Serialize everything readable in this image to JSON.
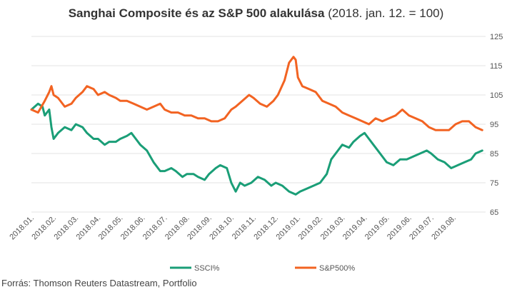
{
  "title_bold": "Sanghai Composite és az S&P 500 alakulása",
  "title_rest": " (2018. jan. 12. = 100)",
  "source": "Forrás: Thomson Reuters Datastream, Portfolio",
  "chart_data": {
    "type": "line",
    "title": "Sanghai Composite és az S&P 500 alakulása (2018. jan. 12. = 100)",
    "y_axis_position": "right",
    "ylim": [
      65,
      125
    ],
    "yticks": [
      65,
      75,
      85,
      95,
      105,
      115,
      125
    ],
    "grid": "horizontal",
    "legend": "bottom-center",
    "x_tick_labels": [
      "2018.01.",
      "2018.02.",
      "2018.03.",
      "2018.04.",
      "2018.05.",
      "2018.06.",
      "2018.07.",
      "2018.08.",
      "2018.09.",
      "2018.10.",
      "2018.11.",
      "2018.12.",
      "2019.01.",
      "2019.02.",
      "2019.03.",
      "2019.04.",
      "2019.05.",
      "2019.06.",
      "2019.07.",
      "2019.08."
    ],
    "x_range_months": [
      0,
      20.3
    ],
    "series": [
      {
        "name": "SSCI%",
        "color": "#1a9e77",
        "points": [
          [
            0,
            100
          ],
          [
            0.3,
            102
          ],
          [
            0.5,
            101
          ],
          [
            0.6,
            98
          ],
          [
            0.8,
            100
          ],
          [
            0.9,
            94
          ],
          [
            1.0,
            90
          ],
          [
            1.2,
            92
          ],
          [
            1.5,
            94
          ],
          [
            1.8,
            93
          ],
          [
            2.0,
            95
          ],
          [
            2.3,
            94
          ],
          [
            2.5,
            92
          ],
          [
            2.8,
            90
          ],
          [
            3.0,
            90
          ],
          [
            3.3,
            88
          ],
          [
            3.5,
            89
          ],
          [
            3.8,
            89
          ],
          [
            4.0,
            90
          ],
          [
            4.3,
            91
          ],
          [
            4.5,
            92
          ],
          [
            4.7,
            90
          ],
          [
            4.9,
            88
          ],
          [
            5.2,
            86
          ],
          [
            5.5,
            82
          ],
          [
            5.8,
            79
          ],
          [
            6.0,
            79
          ],
          [
            6.3,
            80
          ],
          [
            6.5,
            79
          ],
          [
            6.8,
            77
          ],
          [
            7.0,
            78
          ],
          [
            7.3,
            78
          ],
          [
            7.5,
            77
          ],
          [
            7.8,
            76
          ],
          [
            8.0,
            78
          ],
          [
            8.3,
            80
          ],
          [
            8.5,
            81
          ],
          [
            8.8,
            80
          ],
          [
            9.0,
            75
          ],
          [
            9.2,
            72
          ],
          [
            9.4,
            75
          ],
          [
            9.6,
            74
          ],
          [
            9.9,
            75
          ],
          [
            10.2,
            77
          ],
          [
            10.5,
            76
          ],
          [
            10.8,
            74
          ],
          [
            11.0,
            75
          ],
          [
            11.3,
            74
          ],
          [
            11.6,
            72
          ],
          [
            11.9,
            71
          ],
          [
            12.1,
            72
          ],
          [
            12.4,
            73
          ],
          [
            12.7,
            74
          ],
          [
            13.0,
            75
          ],
          [
            13.3,
            78
          ],
          [
            13.5,
            83
          ],
          [
            13.8,
            86
          ],
          [
            14.0,
            88
          ],
          [
            14.3,
            87
          ],
          [
            14.5,
            89
          ],
          [
            14.8,
            91
          ],
          [
            15.0,
            92
          ],
          [
            15.2,
            90
          ],
          [
            15.4,
            88
          ],
          [
            15.6,
            86
          ],
          [
            15.8,
            84
          ],
          [
            16.0,
            82
          ],
          [
            16.3,
            81
          ],
          [
            16.6,
            83
          ],
          [
            16.9,
            83
          ],
          [
            17.2,
            84
          ],
          [
            17.5,
            85
          ],
          [
            17.8,
            86
          ],
          [
            18.0,
            85
          ],
          [
            18.3,
            83
          ],
          [
            18.6,
            82
          ],
          [
            18.9,
            80
          ],
          [
            19.2,
            81
          ],
          [
            19.5,
            82
          ],
          [
            19.8,
            83
          ],
          [
            20.0,
            85
          ],
          [
            20.3,
            86
          ]
        ]
      },
      {
        "name": "S&P500%",
        "color": "#f26322",
        "points": [
          [
            0,
            100
          ],
          [
            0.3,
            99
          ],
          [
            0.6,
            103
          ],
          [
            0.8,
            106
          ],
          [
            0.9,
            108
          ],
          [
            1.0,
            105
          ],
          [
            1.2,
            104
          ],
          [
            1.5,
            101
          ],
          [
            1.8,
            102
          ],
          [
            2.0,
            104
          ],
          [
            2.3,
            106
          ],
          [
            2.5,
            108
          ],
          [
            2.8,
            107
          ],
          [
            3.0,
            105
          ],
          [
            3.3,
            106
          ],
          [
            3.5,
            105
          ],
          [
            3.8,
            104
          ],
          [
            4.0,
            103
          ],
          [
            4.3,
            103
          ],
          [
            4.6,
            102
          ],
          [
            4.9,
            101
          ],
          [
            5.2,
            100
          ],
          [
            5.5,
            101
          ],
          [
            5.8,
            102
          ],
          [
            6.0,
            100
          ],
          [
            6.3,
            99
          ],
          [
            6.6,
            99
          ],
          [
            6.9,
            98
          ],
          [
            7.2,
            98
          ],
          [
            7.5,
            97
          ],
          [
            7.8,
            97
          ],
          [
            8.1,
            96
          ],
          [
            8.4,
            96
          ],
          [
            8.7,
            97
          ],
          [
            9.0,
            100
          ],
          [
            9.2,
            101
          ],
          [
            9.5,
            103
          ],
          [
            9.8,
            105
          ],
          [
            10.0,
            104
          ],
          [
            10.3,
            102
          ],
          [
            10.6,
            101
          ],
          [
            10.9,
            103
          ],
          [
            11.1,
            105
          ],
          [
            11.4,
            110
          ],
          [
            11.6,
            116
          ],
          [
            11.8,
            118
          ],
          [
            11.9,
            117
          ],
          [
            12.0,
            111
          ],
          [
            12.2,
            108
          ],
          [
            12.5,
            107
          ],
          [
            12.8,
            106
          ],
          [
            13.1,
            103
          ],
          [
            13.4,
            102
          ],
          [
            13.7,
            101
          ],
          [
            14.0,
            99
          ],
          [
            14.3,
            98
          ],
          [
            14.6,
            97
          ],
          [
            14.9,
            96
          ],
          [
            15.2,
            95
          ],
          [
            15.5,
            97
          ],
          [
            15.8,
            96
          ],
          [
            16.1,
            97
          ],
          [
            16.4,
            98
          ],
          [
            16.7,
            100
          ],
          [
            17.0,
            98
          ],
          [
            17.3,
            97
          ],
          [
            17.6,
            96
          ],
          [
            17.9,
            94
          ],
          [
            18.2,
            93
          ],
          [
            18.5,
            93
          ],
          [
            18.8,
            93
          ],
          [
            19.1,
            95
          ],
          [
            19.4,
            96
          ],
          [
            19.7,
            96
          ],
          [
            20.0,
            94
          ],
          [
            20.3,
            93
          ]
        ]
      }
    ]
  }
}
